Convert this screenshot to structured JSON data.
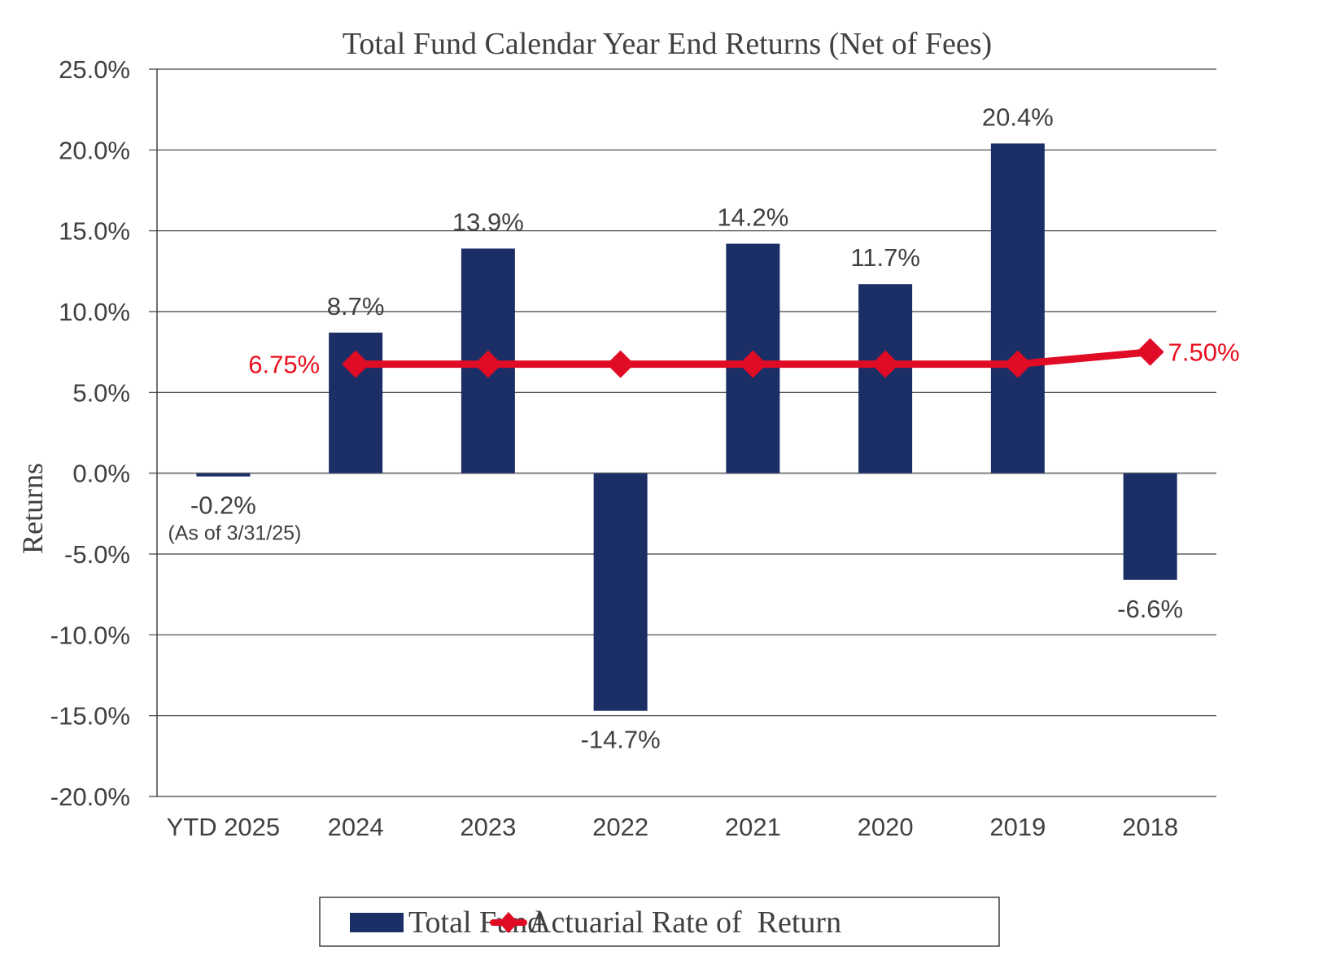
{
  "colors": {
    "bar": "#1b2f66",
    "line": "#e00b25",
    "line_label": "#e8101e",
    "text": "#404040",
    "grid": "#404040"
  },
  "chart_data": {
    "type": "bar",
    "title": "Total Fund Calendar Year End Returns (Net of Fees)",
    "xlabel": "",
    "ylabel": "Returns",
    "ylim": [
      -20,
      25
    ],
    "yticks": [
      25,
      20,
      15,
      10,
      5,
      0,
      -5,
      -10,
      -15,
      -20
    ],
    "ytick_labels": [
      "25.0%",
      "20.0%",
      "15.0%",
      "10.0%",
      "5.0%",
      "0.0%",
      "-5.0%",
      "-10.0%",
      "-15.0%",
      "-20.0%"
    ],
    "grid": true,
    "legend_position": "bottom",
    "categories": [
      "YTD 2025",
      "2024",
      "2023",
      "2022",
      "2021",
      "2020",
      "2019",
      "2018"
    ],
    "series": [
      {
        "name": "Total Fund",
        "type": "bar",
        "values": [
          -0.2,
          8.7,
          13.9,
          -14.7,
          14.2,
          11.7,
          20.4,
          -6.6
        ],
        "labels": [
          "-0.2%",
          "8.7%",
          "13.9%",
          "-14.7%",
          "14.2%",
          "11.7%",
          "20.4%",
          "-6.6%"
        ]
      },
      {
        "name": "Actuarial Rate of  Return",
        "type": "line",
        "marker": "diamond",
        "categories": [
          "2024",
          "2023",
          "2022",
          "2021",
          "2020",
          "2019",
          "2018"
        ],
        "values": [
          6.75,
          6.75,
          6.75,
          6.75,
          6.75,
          6.75,
          7.5
        ],
        "labels": {
          "first": "6.75%",
          "last": "7.50%"
        }
      }
    ],
    "annotations": [
      {
        "category": "YTD 2025",
        "text": "(As of 3/31/25)"
      }
    ]
  }
}
